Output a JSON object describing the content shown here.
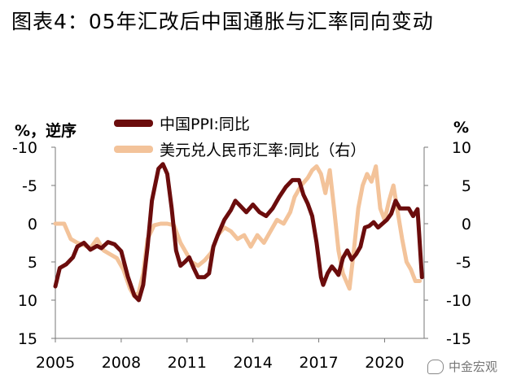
{
  "title": "图表4：05年汇改后中国通胀与汇率同向变动",
  "watermark": "中金宏观",
  "chart_data": {
    "type": "line",
    "left_axis_label": "%，逆序",
    "right_axis_label": "%",
    "left_axis": {
      "range": [
        -10,
        15
      ],
      "inverted": true,
      "ticks": [
        -10,
        -5,
        0,
        5,
        10,
        15
      ],
      "tick_labels": [
        "-10",
        "-5",
        "0",
        "5",
        "10",
        "15"
      ]
    },
    "right_axis": {
      "range": [
        -15,
        10
      ],
      "ticks": [
        10,
        5,
        0,
        -5,
        -10,
        -15
      ],
      "tick_labels": [
        "10",
        "5",
        "0",
        "-5",
        "-10",
        "-15"
      ]
    },
    "x_axis": {
      "range": [
        2005,
        2021.8
      ],
      "ticks": [
        2005,
        2008,
        2011,
        2014,
        2017,
        2020
      ],
      "tick_labels": [
        "2005",
        "2008",
        "2011",
        "2014",
        "2017",
        "2020"
      ]
    },
    "grid": false,
    "series": [
      {
        "name": "中国PPI:同比",
        "axis": "left",
        "color": "#6b0c0c",
        "points": [
          [
            2005.0,
            8.2
          ],
          [
            2005.2,
            5.8
          ],
          [
            2005.5,
            5.3
          ],
          [
            2005.8,
            4.4
          ],
          [
            2006.0,
            3.0
          ],
          [
            2006.3,
            2.5
          ],
          [
            2006.6,
            3.4
          ],
          [
            2006.9,
            2.9
          ],
          [
            2007.1,
            3.2
          ],
          [
            2007.4,
            2.4
          ],
          [
            2007.7,
            2.7
          ],
          [
            2008.0,
            3.6
          ],
          [
            2008.3,
            6.9
          ],
          [
            2008.6,
            9.4
          ],
          [
            2008.8,
            10.0
          ],
          [
            2009.0,
            8.0
          ],
          [
            2009.2,
            3.0
          ],
          [
            2009.4,
            -3.0
          ],
          [
            2009.7,
            -7.2
          ],
          [
            2009.9,
            -7.8
          ],
          [
            2010.1,
            -6.5
          ],
          [
            2010.3,
            -2.0
          ],
          [
            2010.5,
            3.5
          ],
          [
            2010.7,
            5.5
          ],
          [
            2010.9,
            5.0
          ],
          [
            2011.1,
            4.4
          ],
          [
            2011.3,
            5.8
          ],
          [
            2011.5,
            7.0
          ],
          [
            2011.8,
            7.0
          ],
          [
            2012.0,
            6.5
          ],
          [
            2012.2,
            3.0
          ],
          [
            2012.4,
            1.5
          ],
          [
            2012.7,
            -0.5
          ],
          [
            2013.0,
            -1.8
          ],
          [
            2013.2,
            -3.0
          ],
          [
            2013.4,
            -2.4
          ],
          [
            2013.7,
            -1.5
          ],
          [
            2014.0,
            -2.5
          ],
          [
            2014.3,
            -1.5
          ],
          [
            2014.6,
            -1.0
          ],
          [
            2014.9,
            -2.0
          ],
          [
            2015.2,
            -3.5
          ],
          [
            2015.5,
            -4.8
          ],
          [
            2015.8,
            -5.7
          ],
          [
            2016.1,
            -5.7
          ],
          [
            2016.3,
            -3.8
          ],
          [
            2016.5,
            -2.6
          ],
          [
            2016.7,
            -1.0
          ],
          [
            2016.9,
            2.5
          ],
          [
            2017.1,
            7.0
          ],
          [
            2017.2,
            8.0
          ],
          [
            2017.4,
            6.5
          ],
          [
            2017.6,
            5.6
          ],
          [
            2017.8,
            6.3
          ],
          [
            2017.9,
            6.7
          ],
          [
            2018.1,
            4.5
          ],
          [
            2018.3,
            3.5
          ],
          [
            2018.5,
            4.7
          ],
          [
            2018.7,
            4.0
          ],
          [
            2018.9,
            3.0
          ],
          [
            2019.1,
            0.5
          ],
          [
            2019.3,
            0.3
          ],
          [
            2019.5,
            -0.2
          ],
          [
            2019.7,
            0.5
          ],
          [
            2019.9,
            0.0
          ],
          [
            2020.1,
            -0.5
          ],
          [
            2020.3,
            -1.3
          ],
          [
            2020.5,
            -3.0
          ],
          [
            2020.7,
            -2.0
          ],
          [
            2020.9,
            -2.0
          ],
          [
            2021.1,
            -2.0
          ],
          [
            2021.3,
            -1.0
          ],
          [
            2021.5,
            -1.9
          ],
          [
            2021.6,
            2.5
          ],
          [
            2021.7,
            7.0
          ]
        ]
      },
      {
        "name": "美元兑人民币汇率:同比（右）",
        "axis": "right",
        "color": "#f3c39a",
        "points": [
          [
            2005.0,
            0.0
          ],
          [
            2005.4,
            0.0
          ],
          [
            2005.7,
            -2.0
          ],
          [
            2006.0,
            -2.5
          ],
          [
            2006.3,
            -2.8
          ],
          [
            2006.6,
            -3.2
          ],
          [
            2006.9,
            -2.0
          ],
          [
            2007.2,
            -3.5
          ],
          [
            2007.5,
            -4.0
          ],
          [
            2007.8,
            -4.5
          ],
          [
            2008.1,
            -6.0
          ],
          [
            2008.4,
            -8.5
          ],
          [
            2008.6,
            -9.5
          ],
          [
            2008.8,
            -9.0
          ],
          [
            2009.0,
            -6.5
          ],
          [
            2009.2,
            -2.0
          ],
          [
            2009.5,
            -0.2
          ],
          [
            2009.8,
            0.0
          ],
          [
            2010.1,
            0.0
          ],
          [
            2010.4,
            -0.2
          ],
          [
            2010.7,
            -2.5
          ],
          [
            2010.9,
            -3.5
          ],
          [
            2011.2,
            -5.0
          ],
          [
            2011.5,
            -5.5
          ],
          [
            2011.8,
            -4.8
          ],
          [
            2012.1,
            -3.8
          ],
          [
            2012.4,
            -1.5
          ],
          [
            2012.7,
            -0.5
          ],
          [
            2013.0,
            -1.0
          ],
          [
            2013.3,
            -2.0
          ],
          [
            2013.6,
            -1.5
          ],
          [
            2013.9,
            -3.0
          ],
          [
            2014.2,
            -1.5
          ],
          [
            2014.5,
            -2.5
          ],
          [
            2014.8,
            -1.0
          ],
          [
            2015.1,
            0.5
          ],
          [
            2015.4,
            0.0
          ],
          [
            2015.7,
            1.5
          ],
          [
            2015.9,
            3.5
          ],
          [
            2016.2,
            5.0
          ],
          [
            2016.5,
            6.0
          ],
          [
            2016.7,
            7.0
          ],
          [
            2016.9,
            7.5
          ],
          [
            2017.1,
            6.5
          ],
          [
            2017.3,
            4.0
          ],
          [
            2017.5,
            7.0
          ],
          [
            2017.7,
            2.0
          ],
          [
            2017.9,
            -3.5
          ],
          [
            2018.1,
            -6.5
          ],
          [
            2018.4,
            -8.5
          ],
          [
            2018.6,
            -3.5
          ],
          [
            2018.8,
            2.0
          ],
          [
            2019.0,
            5.0
          ],
          [
            2019.2,
            6.5
          ],
          [
            2019.4,
            5.5
          ],
          [
            2019.6,
            7.5
          ],
          [
            2019.8,
            2.0
          ],
          [
            2020.0,
            0.5
          ],
          [
            2020.2,
            3.0
          ],
          [
            2020.4,
            5.0
          ],
          [
            2020.6,
            1.5
          ],
          [
            2020.8,
            -2.0
          ],
          [
            2021.0,
            -5.0
          ],
          [
            2021.2,
            -6.0
          ],
          [
            2021.4,
            -7.5
          ],
          [
            2021.6,
            -7.5
          ]
        ]
      }
    ]
  }
}
